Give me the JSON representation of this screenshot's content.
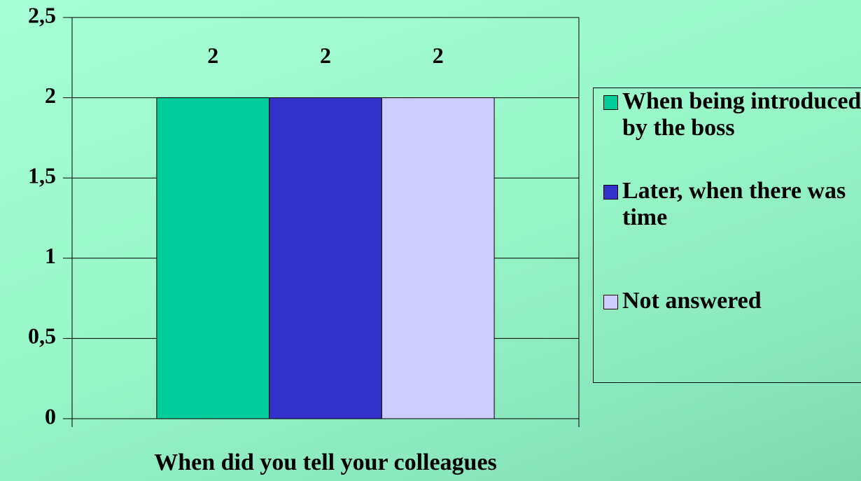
{
  "chart_data": {
    "type": "bar",
    "xlabel": "When did you tell your colleagues",
    "categories": [
      null
    ],
    "series": [
      {
        "name": "When being introduced by the boss",
        "color": "#00cc99",
        "values": [
          2
        ]
      },
      {
        "name": "Later, when there was time",
        "color": "#3333cc",
        "values": [
          2
        ]
      },
      {
        "name": "Not answered",
        "color": "#ccccff",
        "values": [
          2
        ]
      }
    ],
    "ylim": [
      0,
      2.5
    ],
    "yticks": [
      0,
      {
        "value": 0.5,
        "label": "0,5"
      },
      1,
      {
        "value": 1.5,
        "label": "1,5"
      },
      2,
      {
        "value": 2.5,
        "label": "2,5"
      }
    ],
    "grid": true,
    "legend": "right"
  }
}
